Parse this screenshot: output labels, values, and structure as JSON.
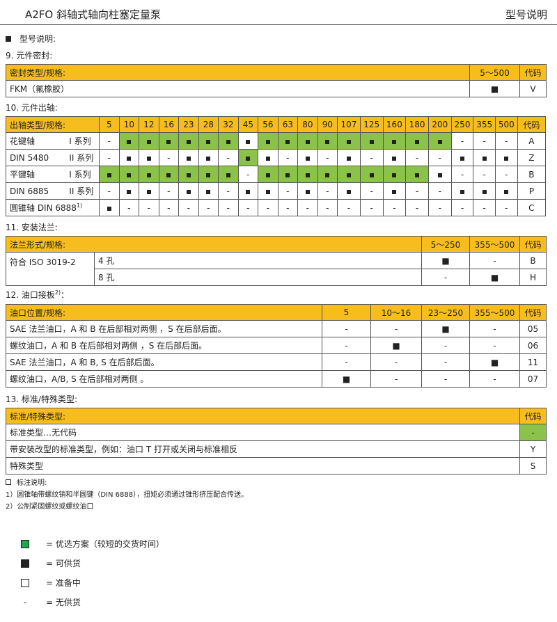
{
  "header": {
    "title": "A2FO 斜轴式轴向柱塞定量泵",
    "right": "型号说明"
  },
  "section_title": "型号说明:",
  "s9": {
    "title": "9.  元件密封:",
    "head": [
      "密封类型/规格:",
      "5～500",
      "代码"
    ],
    "row": [
      "FKM（氟橡胶）",
      "■",
      "V"
    ]
  },
  "s10": {
    "title": "10. 元件出轴:",
    "head_label": "出轴类型/规格:",
    "sizes": [
      "5",
      "10",
      "12",
      "16",
      "23",
      "28",
      "32",
      "45",
      "56",
      "63",
      "80",
      "90",
      "107",
      "125",
      "160",
      "180",
      "200",
      "250",
      "355",
      "500"
    ],
    "code_label": "代码",
    "rows": [
      {
        "a": "花键轴",
        "b": "I 系列",
        "code": "A",
        "v": "-■■■■■■■■■■■■■■■■---",
        "pref": [
          1,
          2,
          3,
          4,
          5,
          6,
          8,
          9,
          10,
          11,
          12,
          13,
          14,
          15,
          16
        ]
      },
      {
        "a": "DIN 5480",
        "b": "II 系列",
        "code": "Z",
        "v": "-■■-■■-■■-■-■-■--■■■",
        "pref": [
          7
        ]
      },
      {
        "a": "平键轴",
        "b": "I 系列",
        "code": "B",
        "v": "■■■■■■■-■■■■■■■■■---",
        "pref": [
          0,
          1,
          2,
          3,
          4,
          5,
          6,
          8,
          9,
          10,
          11,
          12,
          13,
          14,
          15
        ]
      },
      {
        "a": "DIN 6885",
        "b": "II 系列",
        "code": "P",
        "v": "-■■-■■-■■-■-■-■--■■■",
        "pref": []
      },
      {
        "a": "圆锥轴  DIN 6888",
        "sup": "1)",
        "b": "",
        "code": "C",
        "v": "■-------------------",
        "pref": []
      }
    ]
  },
  "s11": {
    "title": "11. 安装法兰:",
    "head": [
      "法兰形式/规格:",
      "5～250",
      "355～500",
      "代码"
    ],
    "standard": "符合 ISO 3019-2",
    "rows": [
      [
        "4 孔",
        "■",
        "-",
        "B"
      ],
      [
        "8 孔",
        "-",
        "■",
        "H"
      ]
    ]
  },
  "s12": {
    "title": "12. 油口接板",
    "sup": "2)",
    "colon": "：",
    "head": [
      "油口位置/规格:",
      "5",
      "10～16",
      "23～250",
      "355～500",
      "代码"
    ],
    "rows": [
      [
        "SAE 法兰油口，A 和 B 在后部相对两侧 ，S 在后部后面。",
        "-",
        "-",
        "■",
        "-",
        "05"
      ],
      [
        "螺纹油口，A 和 B 在后部相对两侧 ，S 在后部后面。",
        "-",
        "■",
        "-",
        "-",
        "06"
      ],
      [
        "SAE 法兰油口，A 和 B, S 在后部后面。",
        "-",
        "-",
        "-",
        "■",
        "11"
      ],
      [
        "螺纹油口，A/B, S 在后部相对两侧 。",
        "■",
        "-",
        "-",
        "-",
        "07"
      ]
    ]
  },
  "s13": {
    "title": "13. 标准/特殊类型:",
    "head": [
      "标准/特殊类型:",
      "代码"
    ],
    "rows": [
      [
        "标准类型…无代码",
        "-"
      ],
      [
        "带安装改型的标准类型，例如：油口 T 打开或关闭与标准相反",
        "Y"
      ],
      [
        "特殊类型",
        "S"
      ]
    ]
  },
  "notes": {
    "title": "标注说明:",
    "items": [
      "1）圆锥轴带螺纹销和半圆键（DIN 6888），扭矩必须通过锥形挤压配合传送。",
      "2）公制紧固螺纹或螺纹油口"
    ]
  },
  "legend": [
    {
      "sym": "",
      "text": "=  优选方案（较短的交货时间）"
    },
    {
      "sym": "",
      "text": "=  可供货"
    },
    {
      "sym": "",
      "text": "=  准备中"
    },
    {
      "sym": "-",
      "text": "=  无供货"
    }
  ],
  "colors": {
    "header_yellow": "#f7bd1e",
    "preferred_green": "#8bc34a"
  }
}
